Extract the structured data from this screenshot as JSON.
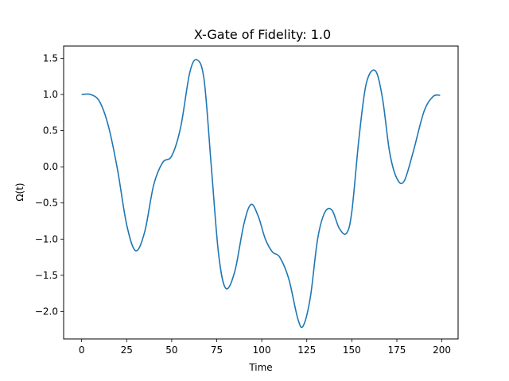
{
  "chart_data": {
    "type": "line",
    "title": "X-Gate of Fidelity: 1.0",
    "xlabel": "Time",
    "ylabel": "Ω(t)",
    "xlim": [
      -10,
      209
    ],
    "ylim": [
      -2.38,
      1.67
    ],
    "x_ticks": [
      0,
      25,
      50,
      75,
      100,
      125,
      150,
      175,
      200
    ],
    "x_tick_labels": [
      "0",
      "25",
      "50",
      "75",
      "100",
      "125",
      "150",
      "175",
      "200"
    ],
    "y_ticks": [
      -2.0,
      -1.5,
      -1.0,
      -0.5,
      0.0,
      0.5,
      1.0,
      1.5
    ],
    "y_tick_labels": [
      "−2.0",
      "−1.5",
      "−1.0",
      "−0.5",
      "0.0",
      "0.5",
      "1.0",
      "1.5"
    ],
    "grid": false,
    "legend": "none",
    "series": [
      {
        "color": "#1f77b4",
        "x": [
          0,
          5,
          10,
          15,
          20,
          25,
          30,
          35,
          40,
          45,
          50,
          55,
          60,
          64,
          68,
          72,
          76,
          80,
          85,
          90,
          94,
          98,
          102,
          106,
          110,
          115,
          120,
          123,
          127,
          131,
          135,
          139,
          143,
          147,
          150,
          154,
          158,
          163,
          167,
          171,
          175,
          179,
          184,
          190,
          195,
          199
        ],
        "y": [
          1.0,
          1.0,
          0.9,
          0.55,
          -0.05,
          -0.8,
          -1.16,
          -0.9,
          -0.25,
          0.06,
          0.15,
          0.55,
          1.3,
          1.48,
          1.2,
          0.0,
          -1.2,
          -1.68,
          -1.45,
          -0.8,
          -0.52,
          -0.68,
          -1.0,
          -1.18,
          -1.25,
          -1.55,
          -2.1,
          -2.2,
          -1.8,
          -1.0,
          -0.63,
          -0.6,
          -0.85,
          -0.92,
          -0.62,
          0.4,
          1.15,
          1.33,
          0.95,
          0.2,
          -0.16,
          -0.2,
          0.2,
          0.76,
          0.97,
          0.99
        ]
      }
    ]
  }
}
